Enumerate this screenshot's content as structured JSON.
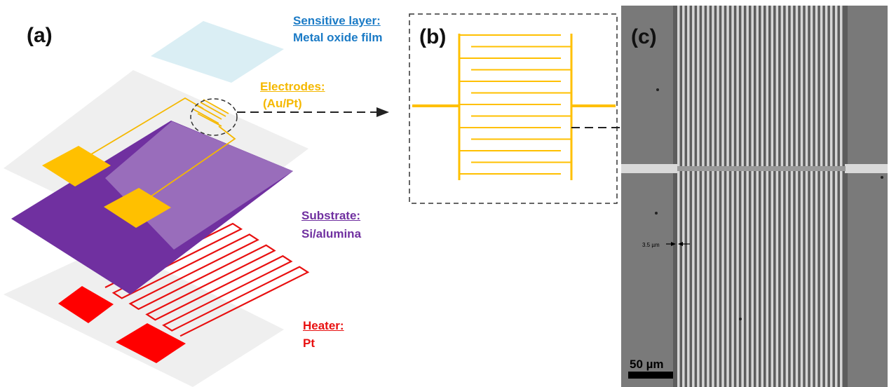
{
  "panels": {
    "a": {
      "label": "(a)"
    },
    "b": {
      "label": "(b)"
    },
    "c": {
      "label": "(c)"
    }
  },
  "layers": {
    "sensitive": {
      "title": "Sensitive layer:",
      "material": "Metal oxide film",
      "color": "#1b7bc6"
    },
    "electrodes": {
      "title": "Electrodes:",
      "material": "(Au/Pt)",
      "color": "#f5b800"
    },
    "substrate": {
      "title": "Substrate:",
      "material": "Si/alumina",
      "color": "#7030a0"
    },
    "heater": {
      "title": "Heater:",
      "material": "Pt",
      "color": "#e81010"
    }
  },
  "micrograph": {
    "gap_label": "3.5 µm",
    "scale_label": "50 µm"
  }
}
